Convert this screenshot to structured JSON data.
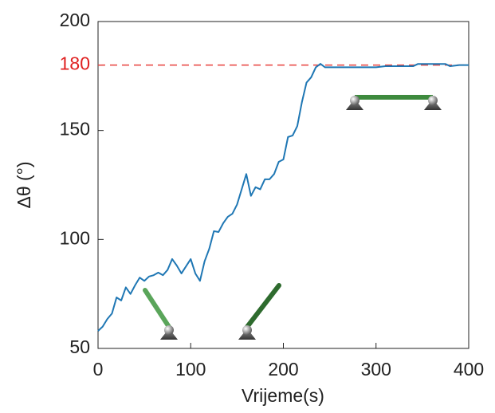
{
  "chart_data": {
    "type": "line",
    "xlabel": "Vrijeme(s)",
    "ylabel": "Δθ (°)",
    "x": [
      0,
      5,
      10,
      15,
      20,
      25,
      30,
      35,
      40,
      45,
      50,
      55,
      60,
      65,
      70,
      75,
      80,
      85,
      90,
      95,
      100,
      105,
      110,
      115,
      120,
      125,
      130,
      135,
      140,
      145,
      150,
      155,
      160,
      165,
      170,
      175,
      180,
      185,
      190,
      195,
      200,
      205,
      210,
      215,
      220,
      225,
      230,
      235,
      240,
      245,
      250,
      260,
      270,
      280,
      290,
      300,
      310,
      320,
      330,
      340,
      345,
      350,
      360,
      370,
      375,
      380,
      390,
      400
    ],
    "series": [
      {
        "color": "#1f77b4",
        "values": [
          58,
          60,
          63.5,
          66,
          73.4,
          72,
          78,
          75,
          79,
          82.5,
          81,
          83,
          83.6,
          84.8,
          83.6,
          86,
          91,
          88,
          84.4,
          87.7,
          91,
          84.4,
          81,
          90,
          95.7,
          103.8,
          103.4,
          107.4,
          110.4,
          111.8,
          116,
          123,
          130,
          120,
          124,
          123,
          127.6,
          127.6,
          130,
          135.6,
          136.7,
          147,
          147.7,
          152,
          163,
          172,
          174.4,
          179,
          180.6,
          179,
          179,
          179,
          179,
          179,
          179,
          179,
          179.5,
          179.5,
          179.5,
          179.5,
          180.5,
          180.5,
          180.5,
          180.5,
          180.5,
          179.5,
          180,
          180
        ]
      }
    ],
    "reference_line": {
      "value": 180,
      "color": "#e8403c"
    },
    "xlim": [
      0,
      400
    ],
    "xticks": [
      0,
      100,
      200,
      300,
      400
    ],
    "ylim": [
      50,
      200
    ],
    "yticks": [
      50,
      100,
      150,
      180,
      200
    ],
    "highlight_tick_color": "#e02020"
  }
}
